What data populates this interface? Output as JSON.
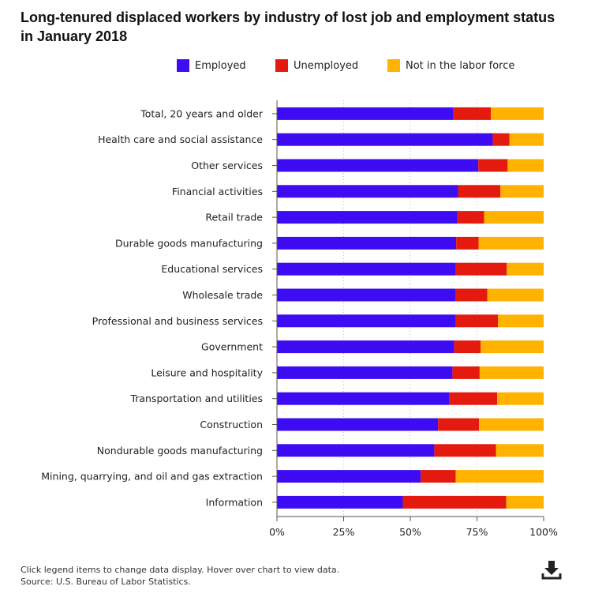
{
  "chart_data": {
    "type": "bar",
    "orientation": "horizontal",
    "stacked": true,
    "title": "Long-tenured displaced workers by industry of lost job and employment status in January 2018",
    "categories": [
      "Total, 20 years and older",
      "Health care and social assistance",
      "Other services",
      "Financial activities",
      "Retail trade",
      "Durable goods manufacturing",
      "Educational services",
      "Wholesale trade",
      "Professional and business services",
      "Government",
      "Leisure and hospitality",
      "Transportation and utilities",
      "Construction",
      "Nondurable goods manufacturing",
      "Mining, quarrying, and oil and gas extraction",
      "Information"
    ],
    "series": [
      {
        "name": "Employed",
        "color": "#3d0cf2",
        "values": [
          66.1,
          80.9,
          75.5,
          67.9,
          67.7,
          67.2,
          67.1,
          67.1,
          67.1,
          66.4,
          65.8,
          64.7,
          60.4,
          59.0,
          53.9,
          47.2
        ]
      },
      {
        "name": "Unemployed",
        "color": "#e41a0f",
        "values": [
          14.1,
          6.3,
          11.0,
          15.9,
          10.0,
          8.4,
          19.1,
          11.8,
          15.8,
          10.0,
          10.2,
          17.9,
          15.4,
          23.1,
          13.1,
          38.8
        ]
      },
      {
        "name": "Not in the labor force",
        "color": "#ffb300",
        "values": [
          19.8,
          12.8,
          13.5,
          16.2,
          22.3,
          24.4,
          13.8,
          21.1,
          17.1,
          23.6,
          24.0,
          17.4,
          24.2,
          17.9,
          33.0,
          14.0
        ]
      }
    ],
    "xlim": [
      0,
      100
    ],
    "xticks": [
      "0%",
      "25%",
      "50%",
      "75%",
      "100%"
    ],
    "legend_position": "top",
    "grid": "vertical dotted"
  },
  "footer": {
    "note": "Click legend items to change data display. Hover over chart to view data.",
    "source": "Source: U.S. Bureau of Labor Statistics."
  },
  "icons": {
    "download": "download-icon"
  }
}
